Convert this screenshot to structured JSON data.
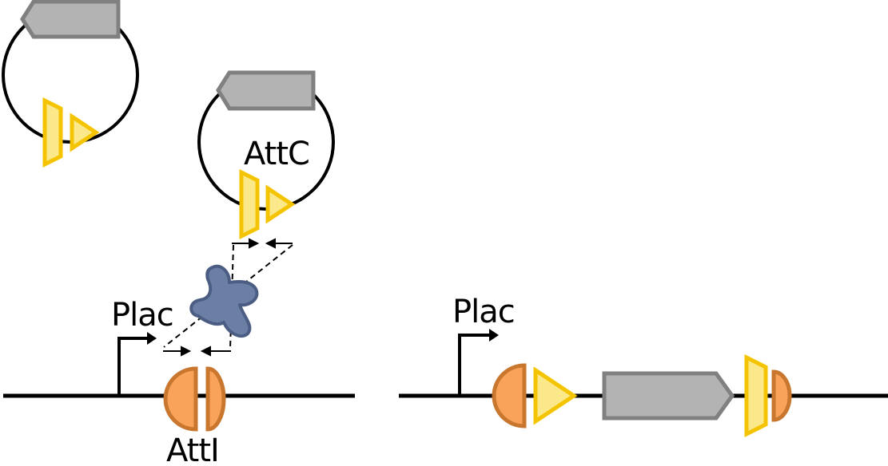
{
  "labels": {
    "plac_left": "Plac",
    "attc": "AttC",
    "atti": "AttI",
    "plac_right": "Plac"
  },
  "colors": {
    "line": "#000000",
    "gene_fill": "#b3b3b3",
    "gene_stroke": "#808080",
    "attc_fill": "#fbe88a",
    "attc_stroke": "#f5c400",
    "atti_fill": "#f9a25a",
    "atti_stroke": "#c9772f",
    "integrase_fill": "#6b7fa5",
    "integrase_stroke": "#4b5d82"
  },
  "icons": {
    "integrase": "integrase-enzyme-icon",
    "promoter": "promoter-arrow-icon"
  }
}
